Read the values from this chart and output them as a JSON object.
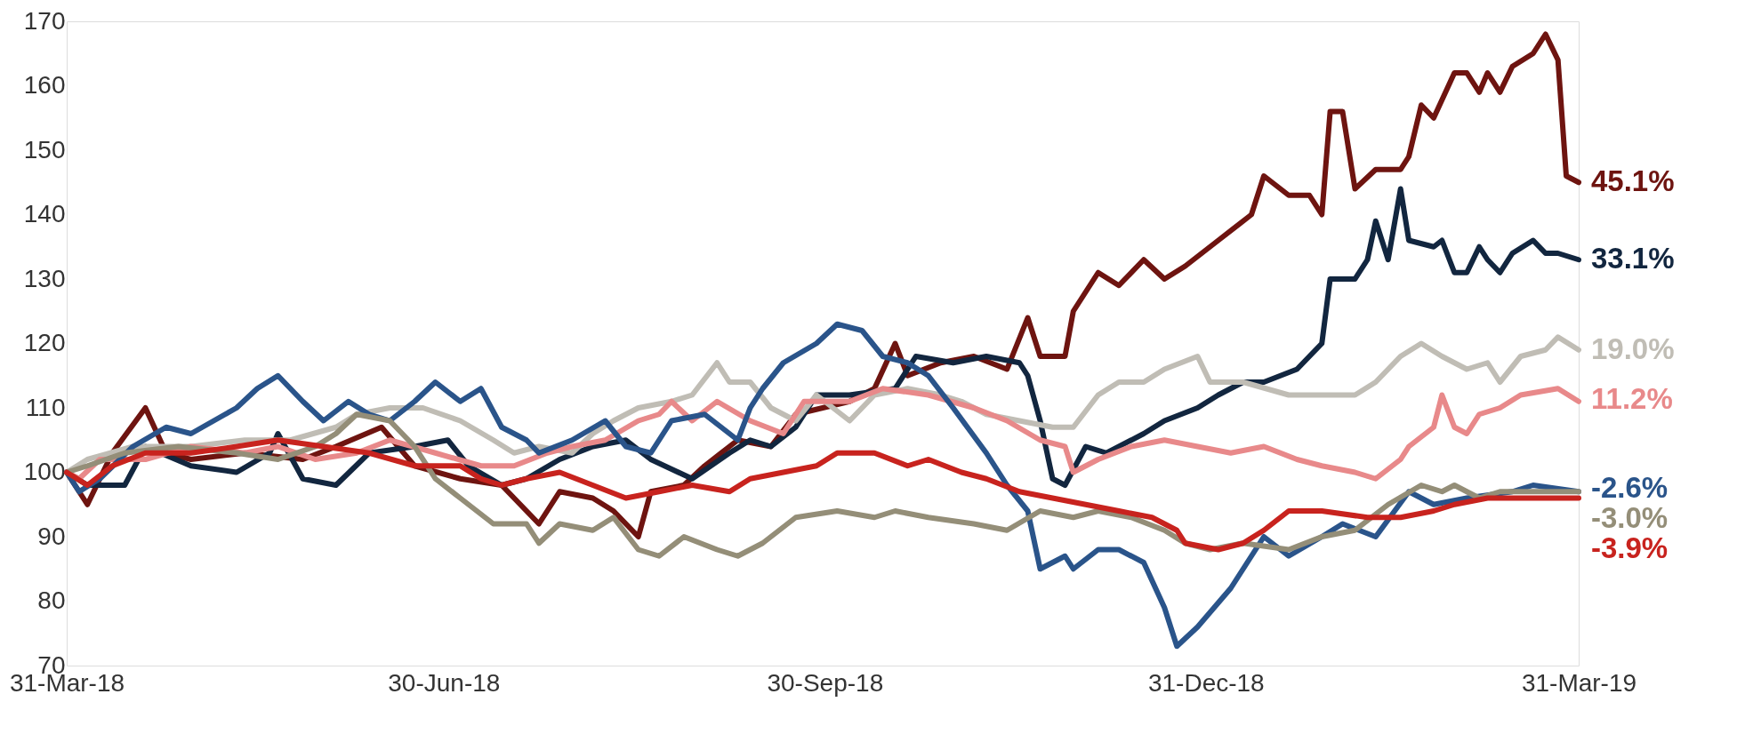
{
  "chart_data": {
    "type": "line",
    "xlim": [
      "2018-03-31",
      "2019-03-31"
    ],
    "ylim": [
      70,
      170
    ],
    "xticks": [
      {
        "value": "2018-03-31",
        "label": "31-Mar-18"
      },
      {
        "value": "2018-06-30",
        "label": "30-Jun-18"
      },
      {
        "value": "2018-09-30",
        "label": "30-Sep-18"
      },
      {
        "value": "2018-12-31",
        "label": "31-Dec-18"
      },
      {
        "value": "2019-03-31",
        "label": "31-Mar-19"
      }
    ],
    "yticks": [
      70,
      80,
      90,
      100,
      110,
      120,
      130,
      140,
      150,
      160,
      170
    ],
    "series": [
      {
        "color": "#6e1410",
        "x": [
          "2018-03-31",
          "2018-04-05",
          "2018-04-11",
          "2018-04-19",
          "2018-04-24",
          "2018-04-30",
          "2018-05-13",
          "2018-05-27",
          "2018-06-04",
          "2018-06-15",
          "2018-06-23",
          "2018-07-04",
          "2018-07-14",
          "2018-07-23",
          "2018-07-28",
          "2018-08-05",
          "2018-08-10",
          "2018-08-16",
          "2018-08-19",
          "2018-08-27",
          "2018-09-01",
          "2018-09-09",
          "2018-09-17",
          "2018-09-23",
          "2018-10-06",
          "2018-10-12",
          "2018-10-17",
          "2018-10-20",
          "2018-10-28",
          "2018-11-05",
          "2018-11-13",
          "2018-11-18",
          "2018-11-21",
          "2018-11-27",
          "2018-11-29",
          "2018-12-05",
          "2018-12-10",
          "2018-12-16",
          "2018-12-21",
          "2018-12-26",
          "2019-01-03",
          "2019-01-11",
          "2019-01-14",
          "2019-01-20",
          "2019-01-25",
          "2019-01-28",
          "2019-01-30",
          "2019-02-02",
          "2019-02-05",
          "2019-02-10",
          "2019-02-16",
          "2019-02-18",
          "2019-02-21",
          "2019-02-24",
          "2019-03-01",
          "2019-03-04",
          "2019-03-07",
          "2019-03-09",
          "2019-03-12",
          "2019-03-15",
          "2019-03-20",
          "2019-03-23",
          "2019-03-26",
          "2019-03-28",
          "2019-03-31"
        ],
        "values": [
          100,
          95,
          103,
          110,
          103,
          102,
          103,
          102,
          104,
          107,
          101,
          99,
          98,
          92,
          97,
          96,
          94,
          90,
          97,
          98,
          101,
          105,
          104,
          109,
          111,
          113,
          120,
          115,
          117,
          118,
          116,
          124,
          118,
          118,
          125,
          131,
          129,
          133,
          130,
          132,
          136,
          140,
          146,
          143,
          143,
          140,
          156,
          156,
          144,
          147,
          147,
          149,
          157,
          155,
          162,
          162,
          159,
          162,
          159,
          163,
          165,
          168,
          164,
          146,
          145
        ]
      },
      {
        "color": "#12263f",
        "x": [
          "2018-03-31",
          "2018-04-05",
          "2018-04-14",
          "2018-04-19",
          "2018-04-30",
          "2018-05-11",
          "2018-05-19",
          "2018-05-21",
          "2018-05-27",
          "2018-06-04",
          "2018-06-12",
          "2018-06-23",
          "2018-07-01",
          "2018-07-06",
          "2018-07-14",
          "2018-07-20",
          "2018-07-28",
          "2018-08-05",
          "2018-08-13",
          "2018-08-19",
          "2018-08-29",
          "2018-09-07",
          "2018-09-12",
          "2018-09-17",
          "2018-09-23",
          "2018-09-28",
          "2018-10-06",
          "2018-10-17",
          "2018-10-22",
          "2018-10-31",
          "2018-11-08",
          "2018-11-16",
          "2018-11-18",
          "2018-11-21",
          "2018-11-24",
          "2018-11-27",
          "2018-12-02",
          "2018-12-07",
          "2018-12-16",
          "2018-12-21",
          "2018-12-29",
          "2019-01-03",
          "2019-01-09",
          "2019-01-14",
          "2019-01-22",
          "2019-01-28",
          "2019-01-30",
          "2019-02-05",
          "2019-02-08",
          "2019-02-10",
          "2019-02-13",
          "2019-02-16",
          "2019-02-18",
          "2019-02-24",
          "2019-02-26",
          "2019-03-01",
          "2019-03-04",
          "2019-03-07",
          "2019-03-09",
          "2019-03-12",
          "2019-03-15",
          "2019-03-20",
          "2019-03-23",
          "2019-03-26",
          "2019-03-31"
        ],
        "values": [
          100,
          98,
          98,
          104,
          101,
          100,
          103,
          106,
          99,
          98,
          103,
          104,
          105,
          101,
          98,
          99,
          102,
          104,
          105,
          102,
          99,
          103,
          105,
          104,
          107,
          112,
          112,
          113,
          118,
          117,
          118,
          117,
          115,
          108,
          99,
          98,
          104,
          103,
          106,
          108,
          110,
          112,
          114,
          114,
          116,
          120,
          130,
          130,
          133,
          139,
          133,
          144,
          136,
          135,
          136,
          131,
          131,
          135,
          133,
          131,
          134,
          136,
          134,
          134,
          133
        ]
      },
      {
        "color": "#c0bdb5",
        "x": [
          "2018-03-31",
          "2018-04-05",
          "2018-04-16",
          "2018-04-30",
          "2018-05-13",
          "2018-05-24",
          "2018-06-04",
          "2018-06-09",
          "2018-06-17",
          "2018-06-25",
          "2018-07-04",
          "2018-07-12",
          "2018-07-17",
          "2018-07-23",
          "2018-07-31",
          "2018-08-05",
          "2018-08-10",
          "2018-08-16",
          "2018-08-24",
          "2018-08-29",
          "2018-09-04",
          "2018-09-07",
          "2018-09-12",
          "2018-09-17",
          "2018-09-23",
          "2018-09-28",
          "2018-10-06",
          "2018-10-12",
          "2018-10-20",
          "2018-10-28",
          "2018-11-02",
          "2018-11-08",
          "2018-11-16",
          "2018-11-24",
          "2018-11-29",
          "2018-12-05",
          "2018-12-10",
          "2018-12-16",
          "2018-12-21",
          "2018-12-29",
          "2019-01-01",
          "2019-01-09",
          "2019-01-20",
          "2019-01-28",
          "2019-02-05",
          "2019-02-10",
          "2019-02-16",
          "2019-02-21",
          "2019-02-26",
          "2019-03-04",
          "2019-03-09",
          "2019-03-12",
          "2019-03-17",
          "2019-03-23",
          "2019-03-26",
          "2019-03-31"
        ],
        "values": [
          100,
          102,
          104,
          104,
          105,
          105,
          107,
          109,
          110,
          110,
          108,
          105,
          103,
          104,
          103,
          106,
          108,
          110,
          111,
          112,
          117,
          114,
          114,
          110,
          108,
          112,
          108,
          112,
          113,
          112,
          111,
          109,
          108,
          107,
          107,
          112,
          114,
          114,
          116,
          118,
          114,
          114,
          112,
          112,
          112,
          114,
          118,
          120,
          118,
          116,
          117,
          114,
          118,
          119,
          121,
          119
        ]
      },
      {
        "color": "#e8898a",
        "x": [
          "2018-03-31",
          "2018-04-03",
          "2018-04-08",
          "2018-04-19",
          "2018-04-30",
          "2018-05-13",
          "2018-05-21",
          "2018-05-30",
          "2018-06-09",
          "2018-06-17",
          "2018-06-28",
          "2018-07-09",
          "2018-07-17",
          "2018-07-25",
          "2018-07-31",
          "2018-08-08",
          "2018-08-16",
          "2018-08-21",
          "2018-08-24",
          "2018-08-29",
          "2018-09-04",
          "2018-09-12",
          "2018-09-20",
          "2018-09-25",
          "2018-10-06",
          "2018-10-14",
          "2018-10-25",
          "2018-11-05",
          "2018-11-13",
          "2018-11-21",
          "2018-11-27",
          "2018-11-29",
          "2018-12-05",
          "2018-12-13",
          "2018-12-21",
          "2018-12-29",
          "2019-01-06",
          "2019-01-14",
          "2019-01-22",
          "2019-01-28",
          "2019-02-05",
          "2019-02-10",
          "2019-02-16",
          "2019-02-18",
          "2019-02-24",
          "2019-02-26",
          "2019-03-01",
          "2019-03-04",
          "2019-03-07",
          "2019-03-12",
          "2019-03-17",
          "2019-03-26",
          "2019-03-31"
        ],
        "values": [
          100,
          99,
          102,
          102,
          104,
          103,
          104,
          102,
          103,
          105,
          103,
          101,
          101,
          103,
          104,
          105,
          108,
          109,
          111,
          108,
          111,
          108,
          106,
          111,
          111,
          113,
          112,
          110,
          108,
          105,
          104,
          100,
          102,
          104,
          105,
          104,
          103,
          104,
          102,
          101,
          100,
          99,
          102,
          104,
          107,
          112,
          107,
          106,
          109,
          110,
          112,
          113,
          111
        ]
      },
      {
        "color": "#2a548a",
        "x": [
          "2018-03-31",
          "2018-04-03",
          "2018-04-08",
          "2018-04-16",
          "2018-04-24",
          "2018-04-30",
          "2018-05-11",
          "2018-05-16",
          "2018-05-21",
          "2018-05-27",
          "2018-06-01",
          "2018-06-07",
          "2018-06-12",
          "2018-06-17",
          "2018-06-23",
          "2018-06-28",
          "2018-07-04",
          "2018-07-09",
          "2018-07-14",
          "2018-07-20",
          "2018-07-23",
          "2018-07-31",
          "2018-08-08",
          "2018-08-13",
          "2018-08-19",
          "2018-08-24",
          "2018-09-01",
          "2018-09-09",
          "2018-09-12",
          "2018-09-15",
          "2018-09-20",
          "2018-09-28",
          "2018-10-03",
          "2018-10-09",
          "2018-10-14",
          "2018-10-20",
          "2018-10-25",
          "2018-10-31",
          "2018-11-08",
          "2018-11-13",
          "2018-11-18",
          "2018-11-21",
          "2018-11-27",
          "2018-11-29",
          "2018-12-05",
          "2018-12-10",
          "2018-12-16",
          "2018-12-21",
          "2018-12-24",
          "2018-12-29",
          "2019-01-06",
          "2019-01-14",
          "2019-01-20",
          "2019-01-28",
          "2019-02-02",
          "2019-02-10",
          "2019-02-18",
          "2019-02-24",
          "2019-03-04",
          "2019-03-15",
          "2019-03-20",
          "2019-03-31"
        ],
        "values": [
          100,
          97,
          99,
          104,
          107,
          106,
          110,
          113,
          115,
          111,
          108,
          111,
          109,
          108,
          111,
          114,
          111,
          113,
          107,
          105,
          103,
          105,
          108,
          104,
          103,
          108,
          109,
          105,
          110,
          113,
          117,
          120,
          123,
          122,
          118,
          117,
          115,
          110,
          103,
          98,
          94,
          85,
          87,
          85,
          88,
          88,
          86,
          79,
          73,
          76,
          82,
          90,
          87,
          90,
          92,
          90,
          97,
          95,
          96,
          97,
          98,
          97
        ]
      },
      {
        "color": "#948e78",
        "x": [
          "2018-03-31",
          "2018-04-05",
          "2018-04-14",
          "2018-04-27",
          "2018-05-11",
          "2018-05-21",
          "2018-05-30",
          "2018-06-04",
          "2018-06-09",
          "2018-06-17",
          "2018-06-23",
          "2018-06-28",
          "2018-07-04",
          "2018-07-12",
          "2018-07-20",
          "2018-07-23",
          "2018-07-28",
          "2018-08-05",
          "2018-08-10",
          "2018-08-16",
          "2018-08-21",
          "2018-08-27",
          "2018-09-04",
          "2018-09-09",
          "2018-09-15",
          "2018-09-23",
          "2018-10-03",
          "2018-10-12",
          "2018-10-17",
          "2018-10-25",
          "2018-11-05",
          "2018-11-13",
          "2018-11-21",
          "2018-11-29",
          "2018-12-05",
          "2018-12-13",
          "2018-12-21",
          "2018-12-26",
          "2019-01-01",
          "2019-01-09",
          "2019-01-20",
          "2019-01-28",
          "2019-02-05",
          "2019-02-13",
          "2019-02-21",
          "2019-02-26",
          "2019-03-01",
          "2019-03-07",
          "2019-03-12",
          "2019-03-20",
          "2019-03-31"
        ],
        "values": [
          100,
          101,
          103,
          104,
          103,
          102,
          104,
          106,
          109,
          108,
          104,
          99,
          96,
          92,
          92,
          89,
          92,
          91,
          93,
          88,
          87,
          90,
          88,
          87,
          89,
          93,
          94,
          93,
          94,
          93,
          92,
          91,
          94,
          93,
          94,
          93,
          91,
          89,
          88,
          89,
          88,
          90,
          91,
          95,
          98,
          97,
          98,
          96,
          97,
          97,
          97
        ]
      },
      {
        "color": "#c8231e",
        "x": [
          "2018-03-31",
          "2018-04-05",
          "2018-04-11",
          "2018-04-19",
          "2018-04-30",
          "2018-05-11",
          "2018-05-21",
          "2018-06-01",
          "2018-06-12",
          "2018-06-23",
          "2018-07-04",
          "2018-07-09",
          "2018-07-14",
          "2018-07-20",
          "2018-07-28",
          "2018-08-05",
          "2018-08-13",
          "2018-08-21",
          "2018-08-29",
          "2018-09-07",
          "2018-09-12",
          "2018-09-20",
          "2018-09-28",
          "2018-10-03",
          "2018-10-12",
          "2018-10-20",
          "2018-10-25",
          "2018-11-02",
          "2018-11-08",
          "2018-11-16",
          "2018-11-24",
          "2018-12-02",
          "2018-12-10",
          "2018-12-18",
          "2018-12-24",
          "2018-12-26",
          "2019-01-03",
          "2019-01-09",
          "2019-01-14",
          "2019-01-20",
          "2019-01-28",
          "2019-02-08",
          "2019-02-16",
          "2019-02-24",
          "2019-03-01",
          "2019-03-09",
          "2019-03-20",
          "2019-03-31"
        ],
        "values": [
          100,
          98,
          101,
          103,
          103,
          104,
          105,
          104,
          103,
          101,
          101,
          99,
          98,
          99,
          100,
          98,
          96,
          97,
          98,
          97,
          99,
          100,
          101,
          103,
          103,
          101,
          102,
          100,
          99,
          97,
          96,
          95,
          94,
          93,
          91,
          89,
          88,
          89,
          91,
          94,
          94,
          93,
          93,
          94,
          95,
          96,
          96,
          96
        ]
      }
    ],
    "annotations": [
      {
        "text": "45.1%",
        "x": "2019-03-31",
        "y": 145.1
      },
      {
        "text": "33.1%",
        "x": "2019-03-31",
        "y": 133.1
      },
      {
        "text": "19.0%",
        "x": "2019-03-31",
        "y": 119.0
      },
      {
        "text": "11.2%",
        "x": "2019-03-31",
        "y": 111.2
      },
      {
        "text": "-2.6%",
        "x": "2019-03-31",
        "y": 97.4
      },
      {
        "text": "-3.0%",
        "x": "2019-03-31",
        "y": 97.0
      },
      {
        "text": "-3.9%",
        "x": "2019-03-31",
        "y": 96.1
      }
    ]
  }
}
